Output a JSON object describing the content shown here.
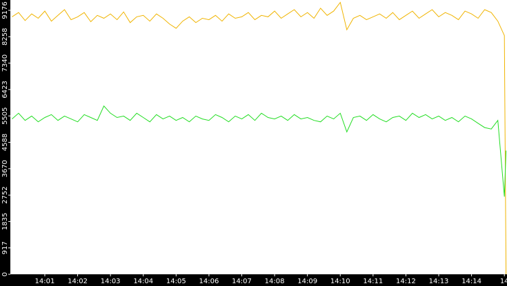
{
  "chart_data": {
    "type": "line",
    "x": [
      0,
      0.2,
      0.4,
      0.6,
      0.8,
      1,
      1.2,
      1.4,
      1.6,
      1.8,
      2,
      2.2,
      2.4,
      2.6,
      2.8,
      3,
      3.2,
      3.4,
      3.6,
      3.8,
      4,
      4.2,
      4.4,
      4.6,
      4.8,
      5,
      5.2,
      5.4,
      5.6,
      5.8,
      6,
      6.2,
      6.4,
      6.6,
      6.8,
      7,
      7.2,
      7.4,
      7.6,
      7.8,
      8,
      8.2,
      8.4,
      8.6,
      8.8,
      9,
      9.2,
      9.4,
      9.6,
      9.8,
      10,
      10.2,
      10.4,
      10.6,
      10.8,
      11,
      11.2,
      11.4,
      11.6,
      11.8,
      12,
      12.2,
      12.4,
      12.6,
      12.8,
      13,
      13.2,
      13.4,
      13.6,
      13.8,
      14,
      14.2,
      14.4,
      14.6,
      14.8,
      15,
      15.05
    ],
    "series": [
      {
        "color": "#f0b400",
        "values": [
          8950,
          9100,
          8820,
          9050,
          8900,
          9150,
          8800,
          9000,
          9200,
          8850,
          8950,
          9100,
          8780,
          9000,
          8900,
          9050,
          8850,
          9120,
          8750,
          8950,
          9000,
          8800,
          9050,
          8900,
          8700,
          8550,
          8800,
          8950,
          8750,
          8900,
          8850,
          9000,
          8800,
          9050,
          8900,
          8950,
          9100,
          8850,
          9000,
          8950,
          9150,
          8900,
          9050,
          9200,
          8950,
          9100,
          8900,
          9250,
          9000,
          9150,
          9450,
          8500,
          8900,
          9000,
          8850,
          8950,
          9050,
          8900,
          9100,
          8850,
          9000,
          9150,
          8900,
          9050,
          9200,
          8950,
          9100,
          9000,
          8850,
          9150,
          9050,
          8900,
          9200,
          9100,
          8800,
          8300,
          0
        ]
      },
      {
        "color": "#22dd22",
        "values": [
          5400,
          5600,
          5350,
          5500,
          5300,
          5450,
          5550,
          5350,
          5500,
          5400,
          5300,
          5550,
          5450,
          5350,
          5850,
          5600,
          5450,
          5500,
          5350,
          5600,
          5450,
          5300,
          5550,
          5400,
          5500,
          5350,
          5450,
          5300,
          5500,
          5400,
          5350,
          5550,
          5450,
          5300,
          5500,
          5400,
          5550,
          5350,
          5600,
          5450,
          5400,
          5500,
          5350,
          5550,
          5400,
          5450,
          5350,
          5300,
          5500,
          5400,
          5600,
          4950,
          5450,
          5500,
          5350,
          5550,
          5400,
          5300,
          5450,
          5500,
          5350,
          5600,
          5450,
          5550,
          5400,
          5500,
          5350,
          5450,
          5300,
          5500,
          5400,
          5250,
          5100,
          5050,
          5350,
          2700,
          4300
        ]
      }
    ],
    "xlim": [
      -0.05,
      15.08
    ],
    "xticks": [
      {
        "value": 1,
        "label": "14:01"
      },
      {
        "value": 2,
        "label": "14:02"
      },
      {
        "value": 3,
        "label": "14:03"
      },
      {
        "value": 4,
        "label": "14:04"
      },
      {
        "value": 5,
        "label": "14:05"
      },
      {
        "value": 6,
        "label": "14:06"
      },
      {
        "value": 7,
        "label": "14:07"
      },
      {
        "value": 8,
        "label": "14:08"
      },
      {
        "value": 9,
        "label": "14:09"
      },
      {
        "value": 10,
        "label": "14:10"
      },
      {
        "value": 11,
        "label": "14:11"
      },
      {
        "value": 12,
        "label": "14:12"
      },
      {
        "value": 13,
        "label": "14:13"
      },
      {
        "value": 14,
        "label": "14:14"
      },
      {
        "value": 15,
        "label": "14"
      }
    ],
    "ylim": [
      0,
      9535
    ],
    "yticks": [
      0,
      917,
      1835,
      2752,
      3670,
      4588,
      5505,
      6423,
      7340,
      8258,
      9176
    ]
  }
}
